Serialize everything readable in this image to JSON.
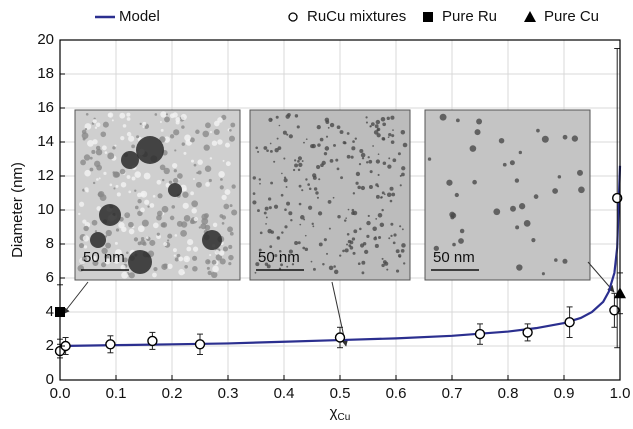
{
  "chart_data": {
    "type": "scatter",
    "x_label": "χ",
    "x_label_sub": "Cu",
    "y_label": "Diameter (nm)",
    "xlim": [
      0,
      1
    ],
    "ylim": [
      0,
      20
    ],
    "xticks": [
      {
        "value": 0,
        "label": "0.0"
      },
      0.1,
      0.2,
      0.3,
      0.4,
      0.5,
      0.6,
      0.7,
      0.8,
      0.9,
      {
        "value": 1,
        "label": "1.0"
      }
    ],
    "yticks": [
      0,
      2,
      4,
      6,
      8,
      10,
      12,
      14,
      16,
      18,
      20
    ],
    "grid": true,
    "legend": "top",
    "series": [
      {
        "name": "Model",
        "marker": "line",
        "color": "#2b2f8f",
        "x": [
          0,
          0.1,
          0.2,
          0.3,
          0.4,
          0.5,
          0.6,
          0.7,
          0.8,
          0.85,
          0.9,
          0.93,
          0.95,
          0.97,
          0.98,
          0.99,
          0.995,
          1.0
        ],
        "values": [
          2.0,
          2.05,
          2.1,
          2.15,
          2.25,
          2.35,
          2.45,
          2.6,
          2.85,
          3.05,
          3.35,
          3.65,
          4.0,
          4.6,
          5.2,
          6.3,
          7.8,
          12.6
        ]
      },
      {
        "name": "RuCu mixtures",
        "marker": "circle-open",
        "color": "#000000",
        "x": [
          0.0,
          0.01,
          0.09,
          0.165,
          0.25,
          0.5,
          0.75,
          0.835,
          0.91,
          0.99,
          0.995
        ],
        "values": [
          1.7,
          2.0,
          2.1,
          2.3,
          2.1,
          2.5,
          2.7,
          2.8,
          3.4,
          4.1,
          10.7
        ],
        "errors": [
          0.4,
          0.5,
          0.5,
          0.5,
          0.6,
          0.6,
          0.6,
          0.5,
          0.9,
          1.0,
          8.8
        ]
      },
      {
        "name": "Pure Ru",
        "marker": "square",
        "color": "#000000",
        "x": [
          0.0
        ],
        "values": [
          4.0
        ],
        "errors": [
          1.6
        ]
      },
      {
        "name": "Pure Cu",
        "marker": "triangle",
        "color": "#000000",
        "x": [
          1.0
        ],
        "values": [
          5.1
        ],
        "errors": [
          1.2
        ]
      }
    ],
    "insets": [
      {
        "scale_label": "50 nm"
      },
      {
        "scale_label": "50 nm"
      },
      {
        "scale_label": "50 nm"
      }
    ]
  }
}
